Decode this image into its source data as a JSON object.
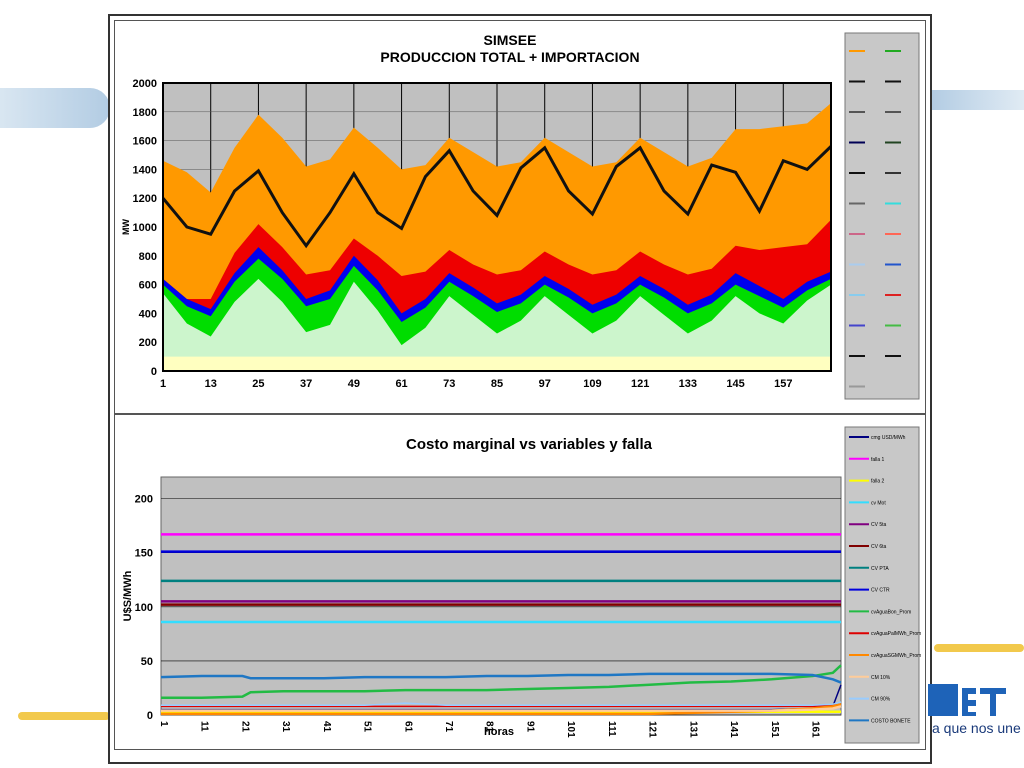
{
  "brand": {
    "tagline": "a que nos une"
  },
  "chart_data": [
    {
      "type": "area",
      "title": "SIMSEE",
      "subtitle": "PRODUCCION TOTAL + IMPORTACION",
      "ylabel": "MW",
      "xlabel": "",
      "ylim": [
        0,
        2000
      ],
      "xlim": [
        1,
        169
      ],
      "y_ticks": [
        0,
        200,
        400,
        600,
        800,
        1000,
        1200,
        1400,
        1600,
        1800,
        2000
      ],
      "x_ticks": [
        1,
        13,
        25,
        37,
        49,
        61,
        73,
        85,
        97,
        109,
        121,
        133,
        145,
        157
      ],
      "grid": true,
      "legend_position": "right",
      "x": [
        1,
        7,
        13,
        19,
        25,
        31,
        37,
        43,
        49,
        55,
        61,
        67,
        73,
        79,
        85,
        91,
        97,
        103,
        109,
        115,
        121,
        127,
        133,
        139,
        145,
        151,
        157,
        163,
        169
      ],
      "series": [
        {
          "color": "#ffffc0",
          "values": [
            100,
            100,
            100,
            100,
            100,
            100,
            100,
            100,
            100,
            100,
            100,
            100,
            100,
            100,
            100,
            100,
            100,
            100,
            100,
            100,
            100,
            100,
            100,
            100,
            100,
            100,
            100,
            100,
            100
          ]
        },
        {
          "color": "#ccf5cc",
          "values": [
            540,
            330,
            240,
            480,
            640,
            480,
            270,
            320,
            620,
            420,
            180,
            300,
            520,
            390,
            260,
            350,
            520,
            390,
            260,
            350,
            520,
            390,
            260,
            350,
            520,
            400,
            330,
            490,
            600
          ]
        },
        {
          "color": "#00dd00",
          "values": [
            600,
            450,
            380,
            620,
            780,
            640,
            450,
            500,
            730,
            560,
            340,
            440,
            620,
            520,
            410,
            470,
            600,
            510,
            400,
            470,
            600,
            510,
            400,
            470,
            600,
            520,
            440,
            560,
            640
          ]
        },
        {
          "color": "#0000ee",
          "values": [
            640,
            500,
            430,
            680,
            860,
            700,
            500,
            560,
            800,
            630,
            400,
            500,
            680,
            580,
            470,
            530,
            660,
            570,
            460,
            530,
            660,
            570,
            460,
            530,
            680,
            590,
            500,
            620,
            690
          ]
        },
        {
          "color": "#ee0000",
          "values": [
            640,
            500,
            500,
            820,
            1020,
            860,
            670,
            700,
            920,
            800,
            660,
            690,
            840,
            740,
            670,
            700,
            830,
            740,
            670,
            700,
            830,
            740,
            670,
            710,
            870,
            840,
            860,
            880,
            1050
          ]
        },
        {
          "color": "#ff9900",
          "values": [
            1460,
            1380,
            1240,
            1550,
            1780,
            1620,
            1420,
            1470,
            1690,
            1550,
            1400,
            1430,
            1620,
            1520,
            1420,
            1450,
            1620,
            1520,
            1420,
            1450,
            1620,
            1520,
            1420,
            1480,
            1680,
            1680,
            1700,
            1720,
            1860
          ]
        }
      ],
      "line": {
        "color": "#111111",
        "values": [
          1200,
          1000,
          950,
          1250,
          1390,
          1100,
          870,
          1100,
          1370,
          1100,
          990,
          1350,
          1530,
          1250,
          1080,
          1410,
          1550,
          1250,
          1090,
          1420,
          1550,
          1250,
          1090,
          1430,
          1380,
          1110,
          1460,
          1400,
          1560
        ]
      },
      "legend_entries": 23
    },
    {
      "type": "line",
      "title": "Costo marginal  vs variables y falla",
      "ylabel": "U$S/MWh",
      "xlabel": "horas",
      "ylim": [
        0,
        220
      ],
      "xlim": [
        1,
        168
      ],
      "y_ticks": [
        0,
        50,
        100,
        150,
        200
      ],
      "x_ticks": [
        "1",
        "11",
        "21",
        "31",
        "41",
        "51",
        "61",
        "71",
        "81",
        "91",
        "101",
        "111",
        "121",
        "131",
        "141",
        "151",
        "161"
      ],
      "grid": true,
      "legend_position": "right",
      "x": [
        1,
        11,
        21,
        23,
        31,
        41,
        51,
        61,
        71,
        81,
        91,
        101,
        111,
        121,
        131,
        141,
        151,
        161,
        166,
        168
      ],
      "series": [
        {
          "name": "cmg USD/MWh",
          "color": "#000080",
          "values": [
            5,
            5,
            5,
            5,
            5,
            5,
            5,
            5,
            5,
            5,
            5,
            5,
            5,
            5,
            5,
            5,
            5,
            6,
            8,
            28
          ]
        },
        {
          "name": "falla 1",
          "color": "#ff00ff",
          "values": [
            167,
            167,
            167,
            167,
            167,
            167,
            167,
            167,
            167,
            167,
            167,
            167,
            167,
            167,
            167,
            167,
            167,
            167,
            167,
            167
          ]
        },
        {
          "name": "falla 2",
          "color": "#ffff00",
          "values": [
            3,
            3,
            3,
            3,
            3,
            3,
            3,
            3,
            3,
            3,
            3,
            3,
            3,
            3,
            3,
            3,
            3,
            3,
            3,
            3
          ]
        },
        {
          "name": "cv Mot",
          "color": "#33ddff",
          "values": [
            86,
            86,
            86,
            86,
            86,
            86,
            86,
            86,
            86,
            86,
            86,
            86,
            86,
            86,
            86,
            86,
            86,
            86,
            86,
            86
          ]
        },
        {
          "name": "CV 5ta",
          "color": "#800080",
          "values": [
            105,
            105,
            105,
            105,
            105,
            105,
            105,
            105,
            105,
            105,
            105,
            105,
            105,
            105,
            105,
            105,
            105,
            105,
            105,
            105
          ]
        },
        {
          "name": "CV 6ta",
          "color": "#800000",
          "values": [
            102,
            102,
            102,
            102,
            102,
            102,
            102,
            102,
            102,
            102,
            102,
            102,
            102,
            102,
            102,
            102,
            102,
            102,
            102,
            102
          ]
        },
        {
          "name": "CV PTA",
          "color": "#008080",
          "values": [
            124,
            124,
            124,
            124,
            124,
            124,
            124,
            124,
            124,
            124,
            124,
            124,
            124,
            124,
            124,
            124,
            124,
            124,
            124,
            124
          ]
        },
        {
          "name": "CV CTR",
          "color": "#0000dd",
          "values": [
            151,
            151,
            151,
            151,
            151,
            151,
            151,
            151,
            151,
            151,
            151,
            151,
            151,
            151,
            151,
            151,
            151,
            151,
            151,
            151
          ]
        },
        {
          "name": "cvAguaBon_Prom",
          "color": "#22bb44",
          "values": [
            16,
            16,
            17,
            21,
            22,
            22,
            22,
            23,
            23,
            23,
            24,
            25,
            26,
            28,
            30,
            31,
            33,
            36,
            39,
            46
          ]
        },
        {
          "name": "cvAguaPalMWh_Prom",
          "color": "#dd0000",
          "values": [
            8,
            8,
            8,
            8,
            8,
            8,
            8,
            8,
            8,
            8,
            8,
            8,
            8,
            8,
            8,
            8,
            8,
            8,
            9,
            10
          ]
        },
        {
          "name": "cvAguaSGMWh_Prom",
          "color": "#ff8800",
          "values": [
            1,
            1,
            1,
            1,
            1,
            1,
            1,
            1,
            1,
            1,
            1,
            1,
            1,
            1,
            2,
            3,
            4,
            6,
            8,
            10
          ]
        },
        {
          "name": "CM 10%",
          "color": "#ffcc99",
          "values": [
            4,
            4,
            4,
            4,
            4,
            4,
            4,
            4,
            4,
            4,
            4,
            4,
            4,
            4,
            4,
            4,
            4,
            5,
            6,
            8
          ]
        },
        {
          "name": "CM 90%",
          "color": "#99ccff",
          "values": [
            9,
            9,
            9,
            9,
            9,
            9,
            9,
            11,
            9,
            9,
            9,
            9,
            9,
            9,
            9,
            9,
            9,
            9,
            10,
            12
          ]
        },
        {
          "name": "COSTO BONETE",
          "color": "#1f77c4",
          "values": [
            35,
            36,
            36,
            34,
            34,
            34,
            35,
            35,
            35,
            36,
            36,
            37,
            37,
            38,
            38,
            38,
            38,
            37,
            33,
            30
          ]
        }
      ]
    }
  ]
}
